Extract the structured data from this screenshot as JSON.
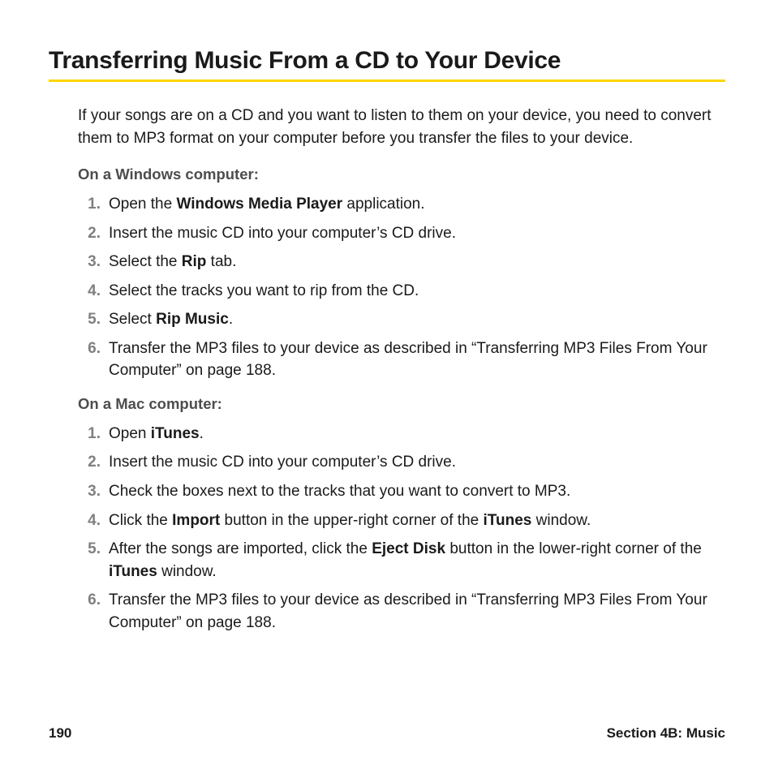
{
  "title": "Transferring Music From a CD to Your Device",
  "intro": "If your songs are on a CD and you want to listen to them on your device, you need to convert them to MP3 format on your computer before you transfer the files to your device.",
  "rule_color": "#fcd500",
  "windows": {
    "heading": "On a Windows computer:",
    "steps": {
      "s1a": "Open the ",
      "s1b": "Windows Media Player",
      "s1c": " application.",
      "s2": "Insert the music CD into your computer’s CD drive.",
      "s3a": "Select the ",
      "s3b": "Rip",
      "s3c": " tab.",
      "s4": "Select the tracks you want to rip from the CD.",
      "s5a": "Select ",
      "s5b": "Rip Music",
      "s5c": ".",
      "s6": "Transfer the MP3 files to your device as described in “Transferring MP3 Files From Your Computer” on page 188."
    }
  },
  "mac": {
    "heading": "On a Mac computer:",
    "steps": {
      "s1a": "Open ",
      "s1b": "iTunes",
      "s1c": ".",
      "s2": "Insert the music CD into your computer’s CD drive.",
      "s3": "Check the boxes next to the tracks that you want to convert to MP3.",
      "s4a": "Click the ",
      "s4b": "Import",
      "s4c": " button in the upper-right corner of the ",
      "s4d": "iTunes",
      "s4e": " window.",
      "s5a": "After the songs are imported, click the ",
      "s5b": "Eject Disk",
      "s5c": " button in the lower-right corner of the ",
      "s5d": "iTunes",
      "s5e": " window.",
      "s6": "Transfer the MP3 files to your device as described in “Transferring MP3 Files From Your Computer” on page 188."
    }
  },
  "footer": {
    "page": "190",
    "section": "Section 4B: Music"
  }
}
